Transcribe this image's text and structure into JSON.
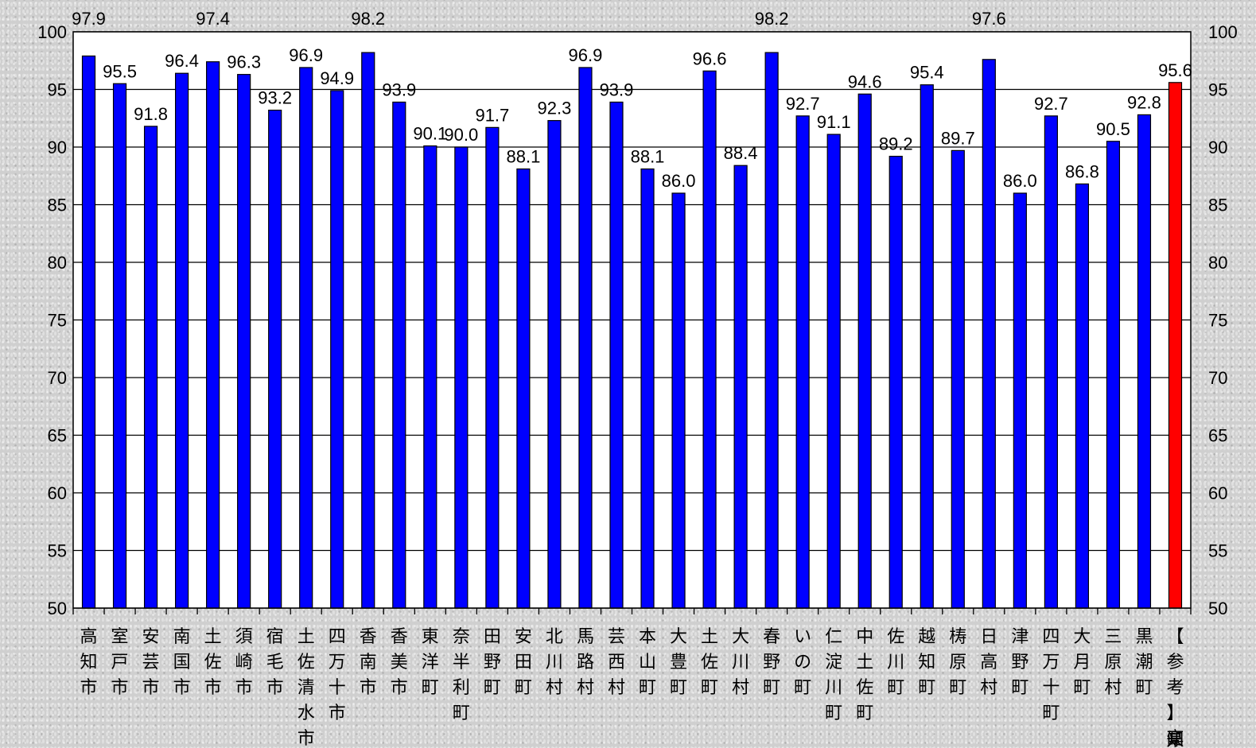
{
  "chart_data": {
    "type": "bar",
    "title": "",
    "xlabel": "",
    "ylabel": "",
    "ylim": [
      50,
      100
    ],
    "yticks": [
      50,
      55,
      60,
      65,
      70,
      75,
      80,
      85,
      90,
      95,
      100
    ],
    "grid": true,
    "legend": "none",
    "colors": {
      "bar": "#0000ff",
      "highlight": "#ff0000",
      "grid": "#000000",
      "plot_bg": "#ffffff"
    },
    "categories": [
      "高知市",
      "室戸市",
      "安芸市",
      "南国市",
      "土佐市",
      "須崎市",
      "宿毛市",
      "土佐清水市",
      "四万十市",
      "香南市",
      "香美市",
      "東洋町",
      "奈半利町",
      "田野町",
      "安田町",
      "北川村",
      "馬路村",
      "芸西村",
      "本山町",
      "大豊町",
      "土佐町",
      "大川村",
      "春野町",
      "いの町",
      "仁淀川町",
      "中土佐町",
      "佐川町",
      "越知町",
      "梼原町",
      "日高村",
      "津野町",
      "四万十町",
      "大月町",
      "三原村",
      "黒潮町",
      "【参考】高知県"
    ],
    "values": [
      97.9,
      95.5,
      91.8,
      96.4,
      97.4,
      96.3,
      93.2,
      96.9,
      94.9,
      98.2,
      93.9,
      90.1,
      90.0,
      91.7,
      88.1,
      92.3,
      96.9,
      93.9,
      88.1,
      86.0,
      96.6,
      88.4,
      98.2,
      92.7,
      91.1,
      94.6,
      89.2,
      95.4,
      89.7,
      97.6,
      86.0,
      92.7,
      86.8,
      90.5,
      92.8,
      95.6
    ],
    "value_labels": [
      "97.9",
      "95.5",
      "91.8",
      "96.4",
      "97.4",
      "96.3",
      "93.2",
      "96.9",
      "94.9",
      "98.2",
      "93.9",
      "90.1",
      "90.0",
      "91.7",
      "88.1",
      "92.3",
      "96.9",
      "93.9",
      "88.1",
      "86.0",
      "96.6",
      "88.4",
      "98.2",
      "92.7",
      "91.1",
      "94.6",
      "89.2",
      "95.4",
      "89.7",
      "97.6",
      "86.0",
      "92.7",
      "86.8",
      "90.5",
      "92.8",
      "95.6"
    ],
    "highlight_index": 35
  }
}
